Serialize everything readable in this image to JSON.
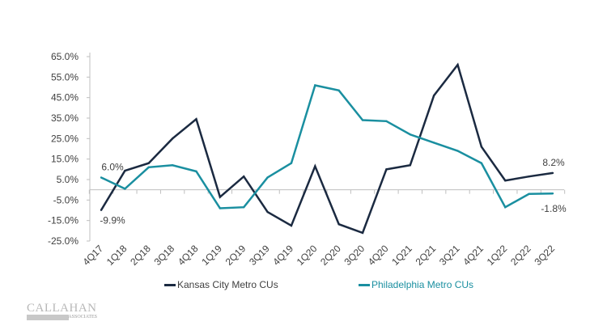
{
  "chart_data": {
    "type": "line",
    "title": "",
    "xlabel": "",
    "ylabel": "",
    "ylim": [
      -25,
      65
    ],
    "yticks": [
      65,
      55,
      45,
      35,
      25,
      15,
      5,
      -5,
      -15,
      -25
    ],
    "ytick_labels": [
      "65.0%",
      "55.0%",
      "45.0%",
      "35.0%",
      "25.0%",
      "15.0%",
      "5.0%",
      "-5.0%",
      "-15.0%",
      "-25.0%"
    ],
    "categories": [
      "4Q17",
      "1Q18",
      "2Q18",
      "3Q18",
      "4Q18",
      "1Q19",
      "2Q19",
      "3Q19",
      "4Q19",
      "1Q20",
      "2Q20",
      "3Q20",
      "4Q20",
      "1Q21",
      "2Q21",
      "3Q21",
      "4Q21",
      "1Q22",
      "2Q22",
      "3Q22"
    ],
    "grid": false,
    "legend_position": "bottom",
    "series": [
      {
        "name": "Kansas City Metro CUs",
        "color": "#1b2a41",
        "values": [
          -9.9,
          9.3,
          13.0,
          25.0,
          34.5,
          -3.5,
          6.5,
          -10.8,
          -17.5,
          11.5,
          -16.8,
          -21.0,
          10.0,
          12.0,
          46.0,
          61.0,
          21.0,
          4.5,
          6.5,
          8.2
        ],
        "labels": {
          "first": "-9.9%",
          "last": "8.2%"
        }
      },
      {
        "name": "Philadelphia Metro CUs",
        "color": "#1a8fa0",
        "values": [
          6.0,
          0.5,
          11.0,
          12.0,
          9.0,
          -9.0,
          -8.5,
          6.0,
          13.0,
          51.0,
          48.5,
          34.0,
          33.5,
          27.0,
          23.0,
          19.0,
          13.0,
          -8.5,
          -2.0,
          -1.8
        ],
        "labels": {
          "first": "6.0%",
          "last": "-1.8%"
        }
      }
    ]
  },
  "logo": {
    "line1": "CALLAHAN",
    "line2": "ASSOCIATES"
  }
}
